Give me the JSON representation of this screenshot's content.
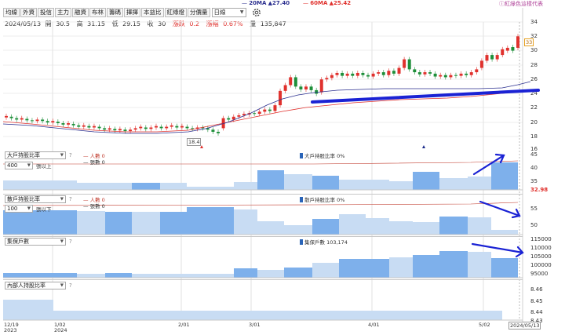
{
  "legend": {
    "ma20_label": "20MA",
    "ma20_value": "▲27.40",
    "ma60_label": "60MA",
    "ma60_value": "▲25.42",
    "ma20_color": "#2b2f8f",
    "ma60_color": "#e0312d",
    "help_text": "ⓘ紅綠色這樣代表"
  },
  "tabs": [
    "均線",
    "外資",
    "投信",
    "主力",
    "融資",
    "布林",
    "籌碼",
    "擇擇",
    "本益比",
    "紅綠燈",
    "分價量"
  ],
  "period": "日線",
  "quote": {
    "date": "2024/05/13",
    "open_label": "開",
    "open": "30.5",
    "high_label": "高",
    "high": "31.15",
    "low_label": "低",
    "low": "29.15",
    "close_label": "收",
    "close": "30",
    "change_label": "漲跌",
    "change": "0.2",
    "pct_label": "漲幅",
    "pct": "0.67%",
    "volume_label": "量",
    "volume": "135,847"
  },
  "price_axis": [
    "34",
    "32",
    "30",
    "28",
    "26",
    "24",
    "22",
    "20",
    "18",
    "16"
  ],
  "annotations": {
    "high": "33",
    "low": "18.4"
  },
  "panel1": {
    "indicator": "大戶持股比率",
    "threshold": "400",
    "threshold_suffix": "張以上",
    "line1": "人數 0",
    "line2": "張數 0",
    "bar_legend": "大戶持股比率 0%",
    "axis": [
      "45",
      "40",
      "35"
    ],
    "current": "32.98"
  },
  "panel2": {
    "indicator": "散戶持股比率",
    "threshold": "100",
    "threshold_suffix": "張以下",
    "line1": "人數 0",
    "line2": "張數 0",
    "bar_legend": "散戶持股比率 0%",
    "axis": [
      "55",
      "50"
    ]
  },
  "panel3": {
    "indicator": "集保戶數",
    "bar_legend": "集保戶數 103,174",
    "axis": [
      "115000",
      "110000",
      "105000",
      "100000",
      "95000"
    ]
  },
  "panel4": {
    "indicator": "內部人持股比率",
    "axis": [
      "8.46",
      "8.45",
      "8.44",
      "8.43"
    ]
  },
  "x_axis": {
    "labels": [
      {
        "top": "12/19",
        "bottom": "2023"
      },
      {
        "top": "1/02",
        "bottom": "2024"
      },
      {
        "top": "2/01",
        "bottom": ""
      },
      {
        "top": "3/01",
        "bottom": ""
      },
      {
        "top": "4/01",
        "bottom": ""
      },
      {
        "top": "5/02",
        "bottom": ""
      }
    ],
    "current": "2024/05/13"
  },
  "chart_data": {
    "type": "candlestick",
    "ylim": [
      16,
      35
    ],
    "ma20_end": 27.4,
    "ma60_end": 25.42
  }
}
